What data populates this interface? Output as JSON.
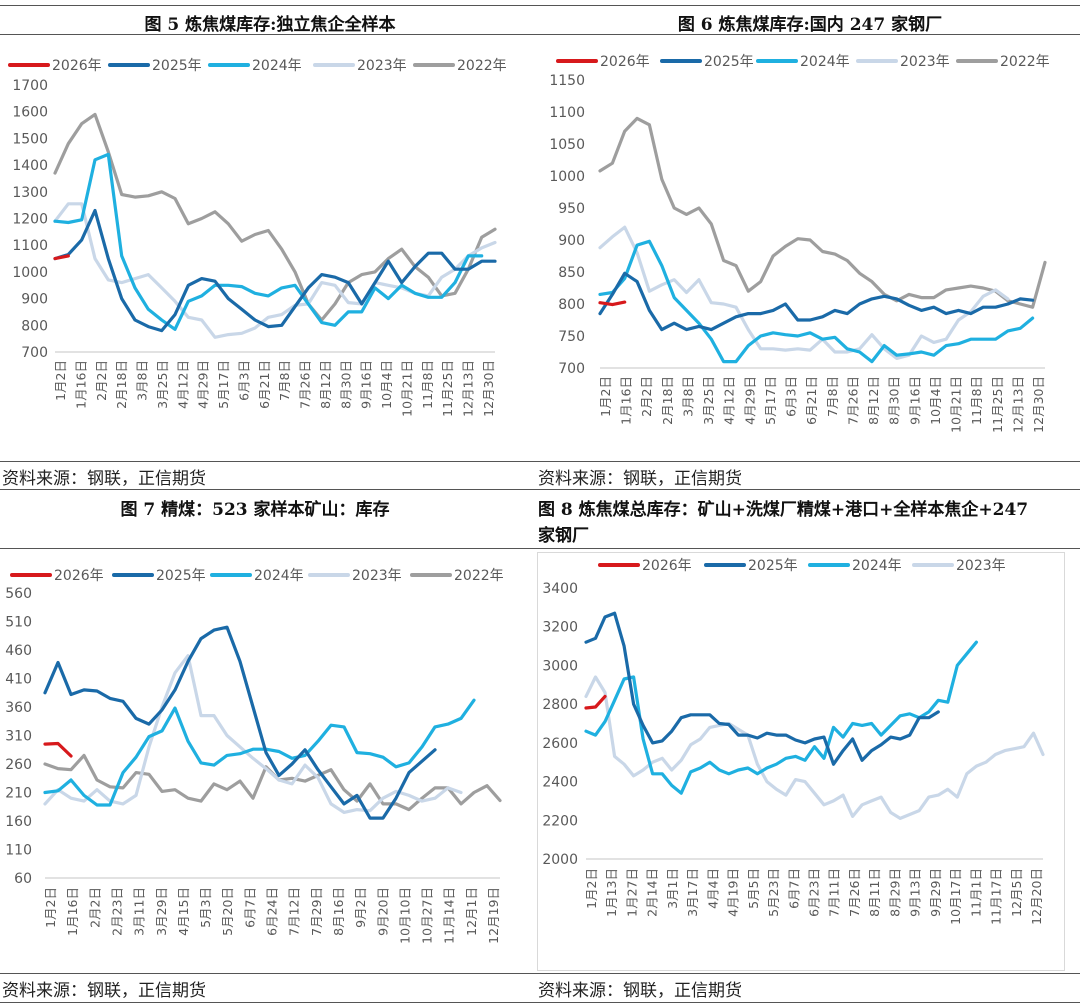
{
  "figures": [
    {
      "title": "图 5    炼焦煤库存:独立焦企全样本",
      "source": "资料来源：钢联，正信期货"
    },
    {
      "title": "图 6    炼焦煤库存:国内 247 家钢厂",
      "source": "资料来源：钢联，正信期货"
    },
    {
      "title": "图 7    精煤：523 家样本矿山：库存",
      "source": "资料来源：钢联，正信期货"
    },
    {
      "title_line1": "图 8    炼焦煤总库存：矿山+洗煤厂精煤+港口+全样本焦企+247",
      "title_line2": "家钢厂",
      "source": "资料来源：钢联，正信期货"
    }
  ],
  "colors": {
    "2026年": "#d7191c",
    "2025年": "#1a6aa8",
    "2024年": "#1fb0e0",
    "2023年": "#c9d7e8",
    "2022年": "#9e9e9e"
  },
  "chart_data": [
    {
      "type": "line",
      "title": "图 5 炼焦煤库存:独立焦企全样本",
      "ylim": [
        700,
        1700
      ],
      "yticks": [
        "700",
        "800",
        "900",
        "1000",
        "1100",
        "1200",
        "1300",
        "1400",
        "1500",
        "1600",
        "1700"
      ],
      "xticks": [
        "1月2日",
        "1月16日",
        "2月2日",
        "2月18日",
        "3月8日",
        "3月25日",
        "4月12日",
        "4月29日",
        "5月17日",
        "6月3日",
        "6月21日",
        "7月8日",
        "7月26日",
        "8月12日",
        "8月30日",
        "9月16日",
        "10月4日",
        "10月21日",
        "11月8日",
        "11月25日",
        "12月13日",
        "12月30日"
      ],
      "legend": [
        "2026年",
        "2025年",
        "2024年",
        "2023年",
        "2022年"
      ],
      "series": [
        {
          "name": "2026年",
          "values": [
            1050,
            1060
          ]
        },
        {
          "name": "2025年",
          "values": [
            1050,
            1065,
            1120,
            1230,
            1050,
            900,
            820,
            795,
            780,
            840,
            950,
            975,
            965,
            900,
            860,
            820,
            795,
            800,
            870,
            940,
            990,
            980,
            960,
            880,
            960,
            1040,
            960,
            1020,
            1070,
            1070,
            1010,
            1010,
            1040,
            1040
          ]
        },
        {
          "name": "2024年",
          "values": [
            1190,
            1185,
            1195,
            1420,
            1440,
            1060,
            940,
            860,
            820,
            785,
            890,
            910,
            950,
            950,
            945,
            920,
            910,
            940,
            950,
            880,
            810,
            800,
            850,
            850,
            940,
            900,
            950,
            920,
            905,
            905,
            960,
            1060,
            1060
          ]
        },
        {
          "name": "2023年",
          "values": [
            1190,
            1255,
            1255,
            1050,
            970,
            960,
            975,
            990,
            940,
            890,
            830,
            820,
            755,
            765,
            770,
            790,
            830,
            840,
            875,
            880,
            960,
            950,
            885,
            880,
            960,
            950,
            940,
            920,
            910,
            980,
            1010,
            1060,
            1090,
            1110
          ]
        },
        {
          "name": "2022年",
          "values": [
            1370,
            1480,
            1555,
            1590,
            1450,
            1290,
            1280,
            1285,
            1300,
            1275,
            1180,
            1200,
            1225,
            1180,
            1115,
            1140,
            1155,
            1085,
            1000,
            880,
            820,
            880,
            960,
            990,
            1000,
            1050,
            1085,
            1020,
            980,
            910,
            920,
            1010,
            1130,
            1160
          ]
        }
      ]
    },
    {
      "type": "line",
      "title": "图 6 炼焦煤库存:国内 247 家钢厂",
      "ylim": [
        700,
        1150
      ],
      "yticks": [
        "700",
        "750",
        "800",
        "850",
        "900",
        "950",
        "1000",
        "1050",
        "1100",
        "1150"
      ],
      "xticks": [
        "1月2日",
        "1月16日",
        "2月2日",
        "2月18日",
        "3月8日",
        "3月25日",
        "4月12日",
        "4月29日",
        "5月17日",
        "6月3日",
        "6月21日",
        "7月8日",
        "7月26日",
        "8月12日",
        "8月30日",
        "9月16日",
        "10月4日",
        "10月21日",
        "11月8日",
        "11月25日",
        "12月13日",
        "12月30日"
      ],
      "legend": [
        "2026年",
        "2025年",
        "2024年",
        "2023年",
        "2022年"
      ],
      "series": [
        {
          "name": "2026年",
          "values": [
            802,
            799,
            803
          ]
        },
        {
          "name": "2025年",
          "values": [
            785,
            815,
            848,
            835,
            790,
            760,
            770,
            760,
            765,
            760,
            770,
            780,
            785,
            785,
            790,
            800,
            775,
            775,
            780,
            790,
            785,
            800,
            808,
            812,
            808,
            798,
            790,
            795,
            785,
            790,
            785,
            795,
            795,
            800,
            808,
            806
          ]
        },
        {
          "name": "2024年",
          "values": [
            815,
            818,
            840,
            892,
            898,
            860,
            810,
            790,
            770,
            745,
            710,
            710,
            735,
            750,
            755,
            752,
            750,
            755,
            745,
            748,
            730,
            725,
            710,
            735,
            720,
            722,
            725,
            720,
            735,
            738,
            745,
            745,
            745,
            758,
            762,
            778
          ]
        },
        {
          "name": "2023年",
          "values": [
            888,
            905,
            920,
            880,
            820,
            830,
            838,
            818,
            838,
            802,
            800,
            795,
            760,
            730,
            730,
            728,
            730,
            728,
            745,
            725,
            725,
            730,
            752,
            730,
            715,
            720,
            750,
            740,
            745,
            775,
            788,
            812,
            822,
            808
          ]
        },
        {
          "name": "2022年",
          "values": [
            1008,
            1020,
            1070,
            1090,
            1080,
            995,
            950,
            940,
            950,
            925,
            868,
            860,
            820,
            835,
            875,
            890,
            902,
            900,
            882,
            878,
            868,
            848,
            835,
            815,
            805,
            815,
            810,
            810,
            822,
            825,
            828,
            825,
            820,
            805,
            800,
            795,
            865
          ]
        }
      ]
    },
    {
      "type": "line",
      "title": "图 7 精煤：523 家样本矿山：库存",
      "ylim": [
        60,
        560
      ],
      "yticks": [
        "60",
        "110",
        "160",
        "210",
        "260",
        "310",
        "360",
        "410",
        "460",
        "510",
        "560"
      ],
      "xticks": [
        "1月2日",
        "1月16日",
        "2月2日",
        "2月23日",
        "3月11日",
        "3月29日",
        "4月15日",
        "5月3日",
        "5月20日",
        "6月7日",
        "6月24日",
        "7月12日",
        "7月29日",
        "8月16日",
        "9月2日",
        "9月20日",
        "10月10日",
        "10月27日",
        "11月14日",
        "12月1日",
        "12月19日"
      ],
      "legend": [
        "2026年",
        "2025年",
        "2024年",
        "2023年",
        "2022年"
      ],
      "series": [
        {
          "name": "2026年",
          "values": [
            295,
            296,
            274
          ]
        },
        {
          "name": "2025年",
          "values": [
            385,
            438,
            382,
            390,
            388,
            375,
            370,
            340,
            330,
            355,
            390,
            440,
            480,
            495,
            500,
            440,
            360,
            280,
            240,
            260,
            285,
            250,
            220,
            190,
            205,
            165,
            165,
            200,
            245,
            265,
            285
          ]
        },
        {
          "name": "2024年",
          "values": [
            210,
            213,
            232,
            205,
            188,
            188,
            245,
            272,
            308,
            318,
            358,
            300,
            262,
            258,
            275,
            278,
            286,
            286,
            282,
            270,
            275,
            300,
            328,
            325,
            280,
            278,
            272,
            255,
            262,
            290,
            325,
            330,
            340,
            372
          ]
        },
        {
          "name": "2023年",
          "values": [
            190,
            215,
            200,
            195,
            215,
            195,
            190,
            205,
            290,
            360,
            420,
            450,
            345,
            345,
            310,
            290,
            270,
            252,
            232,
            225,
            258,
            236,
            190,
            175,
            180,
            178,
            200,
            212,
            205,
            195,
            200,
            218,
            210
          ]
        },
        {
          "name": "2022年",
          "values": [
            260,
            252,
            250,
            275,
            232,
            220,
            218,
            245,
            242,
            212,
            215,
            200,
            195,
            225,
            215,
            230,
            200,
            255,
            232,
            235,
            230,
            240,
            250,
            215,
            195,
            225,
            190,
            190,
            180,
            200,
            218,
            218,
            190,
            210,
            222,
            196
          ]
        }
      ]
    },
    {
      "type": "line",
      "title": "图 8 炼焦煤总库存：矿山+洗煤厂精煤+港口+全样本焦企+247家钢厂",
      "ylim": [
        2000,
        3400
      ],
      "yticks": [
        "2000",
        "2200",
        "2400",
        "2600",
        "2800",
        "3000",
        "3200",
        "3400"
      ],
      "xticks": [
        "1月2日",
        "1月13日",
        "1月27日",
        "2月14日",
        "3月1日",
        "3月17日",
        "4月4日",
        "4月19日",
        "5月5日",
        "5月23日",
        "6月7日",
        "6月23日",
        "7月11日",
        "7月26日",
        "8月11日",
        "8月29日",
        "9月13日",
        "9月29日",
        "10月17日",
        "11月1日",
        "11月17日",
        "12月5日",
        "12月20日"
      ],
      "legend": [
        "2026年",
        "2025年",
        "2024年",
        "2023年"
      ],
      "series": [
        {
          "name": "2026年",
          "values": [
            2780,
            2785,
            2840
          ]
        },
        {
          "name": "2025年",
          "values": [
            3120,
            3140,
            3250,
            3270,
            3100,
            2800,
            2690,
            2600,
            2610,
            2660,
            2730,
            2745,
            2745,
            2745,
            2700,
            2695,
            2640,
            2640,
            2625,
            2650,
            2640,
            2640,
            2615,
            2600,
            2620,
            2630,
            2490,
            2560,
            2620,
            2510,
            2560,
            2590,
            2630,
            2620,
            2640,
            2730,
            2730,
            2760
          ]
        },
        {
          "name": "2024年",
          "values": [
            2660,
            2640,
            2710,
            2820,
            2930,
            2940,
            2620,
            2440,
            2440,
            2380,
            2340,
            2450,
            2470,
            2500,
            2460,
            2440,
            2460,
            2470,
            2440,
            2470,
            2490,
            2520,
            2530,
            2510,
            2580,
            2520,
            2680,
            2630,
            2700,
            2690,
            2700,
            2640,
            2690,
            2740,
            2750,
            2730,
            2760,
            2820,
            2810,
            3000,
            3060,
            3120
          ]
        },
        {
          "name": "2023年",
          "values": [
            2840,
            2940,
            2860,
            2530,
            2490,
            2430,
            2460,
            2500,
            2520,
            2460,
            2510,
            2590,
            2620,
            2680,
            2690,
            2700,
            2670,
            2640,
            2490,
            2400,
            2360,
            2330,
            2410,
            2400,
            2340,
            2280,
            2300,
            2330,
            2220,
            2280,
            2300,
            2320,
            2240,
            2210,
            2230,
            2250,
            2320,
            2330,
            2360,
            2320,
            2440,
            2480,
            2500,
            2540,
            2560,
            2570,
            2580,
            2650,
            2540
          ]
        }
      ]
    }
  ]
}
